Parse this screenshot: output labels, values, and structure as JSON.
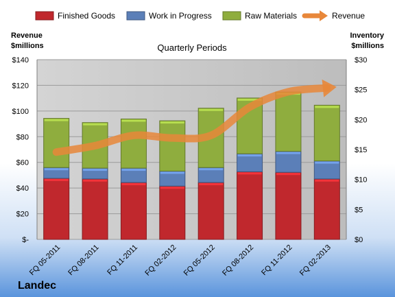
{
  "chart_data": {
    "type": "bar",
    "title": "Quarterly Periods",
    "company": "Landec",
    "left_axis": {
      "label_line1": "Revenue",
      "label_line2": "$millions",
      "range": [
        0,
        140
      ],
      "ticks": [
        "$-",
        "$20",
        "$40",
        "$60",
        "$80",
        "$100",
        "$120",
        "$140"
      ]
    },
    "right_axis": {
      "label_line1": "Inventory",
      "label_line2": "$millions",
      "range": [
        0,
        30
      ],
      "ticks": [
        "$0",
        "$5",
        "$10",
        "$15",
        "$20",
        "$25",
        "$30"
      ]
    },
    "categories": [
      "FQ 05-2011",
      "FQ 08-2011",
      "FQ 11-2011",
      "FQ 02-2012",
      "FQ 05-2012",
      "FQ 08-2012",
      "FQ 11-2012",
      "FQ 02-2013"
    ],
    "series": [
      {
        "name": "Finished Goods",
        "kind": "stacked-bar",
        "axis": "right",
        "color": "#c0282d",
        "values": [
          10.2,
          10.1,
          9.5,
          8.9,
          9.5,
          11.3,
          11.2,
          10.1
        ]
      },
      {
        "name": "Work in Progress",
        "kind": "stacked-bar",
        "axis": "right",
        "color": "#5b7fb8",
        "values": [
          1.8,
          1.8,
          2.4,
          2.5,
          2.5,
          3.0,
          3.5,
          3.0
        ]
      },
      {
        "name": "Raw Materials",
        "kind": "stacked-bar",
        "axis": "right",
        "color": "#8fad3e",
        "values": [
          8.2,
          7.6,
          8.2,
          8.4,
          9.9,
          9.3,
          9.9,
          9.3
        ]
      },
      {
        "name": "Revenue",
        "kind": "line",
        "axis": "left",
        "color": "#e8873a",
        "values": [
          68,
          73,
          81,
          79,
          81,
          103,
          115,
          118
        ]
      }
    ],
    "grid": true,
    "legend": "top"
  }
}
